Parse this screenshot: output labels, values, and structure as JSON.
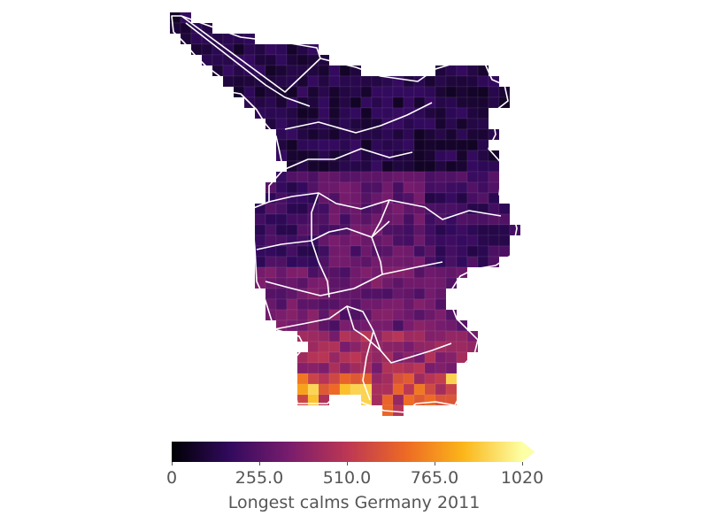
{
  "map": {
    "colormap": [
      "#000004",
      "#320a5e",
      "#781c6d",
      "#bc3754",
      "#ed6925",
      "#fbb61a",
      "#fcffa4"
    ],
    "border_color": "#ffffff",
    "data_range": [
      0,
      1020
    ]
  },
  "colorbar": {
    "label": "Longest calms Germany 2011",
    "extend": "max",
    "ticks": [
      {
        "value": 0,
        "label": "0"
      },
      {
        "value": 255,
        "label": "255.0"
      },
      {
        "value": 510,
        "label": "510.0"
      },
      {
        "value": 765,
        "label": "765.0"
      },
      {
        "value": 1020,
        "label": "1020"
      }
    ]
  }
}
